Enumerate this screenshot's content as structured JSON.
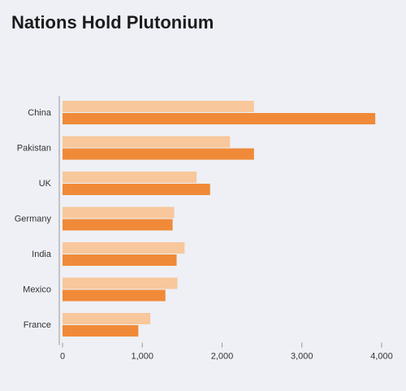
{
  "header": {
    "title": "Nations Hold Plutonium",
    "subtitle": "",
    "note": ""
  },
  "footer": {
    "source": ""
  },
  "colors": {
    "bar_dark": "#f08a38",
    "bar_light": "#f8c79b",
    "axis": "#999999",
    "label": "#333333"
  },
  "chart_data": {
    "type": "bar",
    "orientation": "horizontal",
    "title": "Nations Hold Plutonium",
    "xlabel": "",
    "ylabel": "",
    "categories": [
      "China",
      "Pakistan",
      "UK",
      "Germany",
      "India",
      "Mexico",
      "France"
    ],
    "series": [
      {
        "name": "",
        "values": [
          2400,
          2100,
          1680,
          1400,
          1530,
          1440,
          1100
        ]
      },
      {
        "name": "",
        "values": [
          3920,
          2400,
          1850,
          1380,
          1430,
          1290,
          950
        ]
      }
    ],
    "xlim": [
      0,
      4000
    ],
    "xticks": [
      0,
      1000,
      2000,
      3000,
      4000
    ],
    "xtick_labels": [
      "0",
      "1,000",
      "2,000",
      "3,000",
      "4,000"
    ],
    "legend": [
      "",
      ""
    ],
    "grid": false
  }
}
